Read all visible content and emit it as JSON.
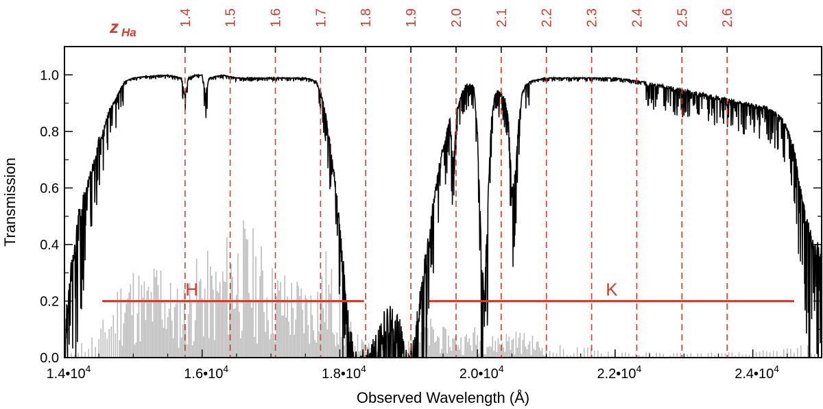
{
  "chart_data": {
    "type": "line",
    "xlabel": "Observed Wavelength  (Å)",
    "ylabel": "Transmission",
    "xlim": [
      14000,
      25000
    ],
    "ylim": [
      0.0,
      1.1
    ],
    "x_ticks": [
      14000,
      16000,
      18000,
      20000,
      22000,
      24000
    ],
    "x_tick_labels": [
      "1.4•10",
      "1.6•10",
      "1.8•10",
      "2.0•10",
      "2.2•10",
      "2.4•10"
    ],
    "x_tick_exponent": "4",
    "y_ticks": [
      0.0,
      0.2,
      0.4,
      0.6,
      0.8,
      1.0
    ],
    "y_tick_labels": [
      "0.0",
      "0.2",
      "0.4",
      "0.6",
      "0.8",
      "1.0"
    ],
    "top_axis": {
      "title_main": "z",
      "title_sub": "Ha",
      "redshifts": [
        "1.4",
        "1.5",
        "1.6",
        "1.7",
        "1.8",
        "1.9",
        "2.0",
        "2.1",
        "2.2",
        "2.3",
        "2.4",
        "2.5",
        "2.6"
      ],
      "halpha_rest_wavelength": 6563
    },
    "bands": [
      {
        "name": "H",
        "x_start": 14550,
        "x_end": 18350,
        "y": 0.2
      },
      {
        "name": "K",
        "x_start": 19300,
        "x_end": 24600,
        "y": 0.2
      }
    ],
    "series": [
      {
        "color": "#000000",
        "points": [
          [
            14000,
            0.1
          ],
          [
            14050,
            0.25
          ],
          [
            14100,
            0.35
          ],
          [
            14150,
            0.42
          ],
          [
            14200,
            0.52
          ],
          [
            14250,
            0.56
          ],
          [
            14300,
            0.6
          ],
          [
            14350,
            0.64
          ],
          [
            14400,
            0.68
          ],
          [
            14450,
            0.72
          ],
          [
            14500,
            0.78
          ],
          [
            14550,
            0.8
          ],
          [
            14600,
            0.84
          ],
          [
            14650,
            0.88
          ],
          [
            14700,
            0.9
          ],
          [
            14750,
            0.92
          ],
          [
            14800,
            0.95
          ],
          [
            14850,
            0.97
          ],
          [
            14900,
            0.98
          ],
          [
            15000,
            0.99
          ],
          [
            15200,
            0.995
          ],
          [
            15500,
            1.0
          ],
          [
            15700,
            0.99
          ],
          [
            15750,
            0.93
          ],
          [
            15800,
            0.99
          ],
          [
            15900,
            1.0
          ],
          [
            16000,
            1.0
          ],
          [
            16050,
            0.94
          ],
          [
            16100,
            0.99
          ],
          [
            16300,
            1.0
          ],
          [
            16500,
            0.99
          ],
          [
            16700,
            0.99
          ],
          [
            17000,
            0.99
          ],
          [
            17300,
            0.99
          ],
          [
            17500,
            0.99
          ],
          [
            17650,
            0.98
          ],
          [
            17700,
            0.96
          ],
          [
            17750,
            0.92
          ],
          [
            17800,
            0.86
          ],
          [
            17850,
            0.78
          ],
          [
            17900,
            0.7
          ],
          [
            17950,
            0.6
          ],
          [
            18000,
            0.48
          ],
          [
            18050,
            0.35
          ],
          [
            18100,
            0.22
          ],
          [
            18150,
            0.12
          ],
          [
            18200,
            0.06
          ],
          [
            18300,
            0.03
          ],
          [
            18400,
            0.04
          ],
          [
            18500,
            0.1
          ],
          [
            18600,
            0.15
          ],
          [
            18700,
            0.2
          ],
          [
            18800,
            0.18
          ],
          [
            18900,
            0.12
          ],
          [
            18950,
            0.05
          ],
          [
            19000,
            0.02
          ],
          [
            19050,
            0.08
          ],
          [
            19100,
            0.15
          ],
          [
            19150,
            0.22
          ],
          [
            19200,
            0.3
          ],
          [
            19250,
            0.38
          ],
          [
            19300,
            0.45
          ],
          [
            19350,
            0.55
          ],
          [
            19400,
            0.62
          ],
          [
            19450,
            0.7
          ],
          [
            19500,
            0.75
          ],
          [
            19550,
            0.8
          ],
          [
            19600,
            0.85
          ],
          [
            19650,
            0.7
          ],
          [
            19700,
            0.88
          ],
          [
            19750,
            0.92
          ],
          [
            19800,
            0.96
          ],
          [
            19850,
            0.97
          ],
          [
            19900,
            0.97
          ],
          [
            19950,
            0.96
          ],
          [
            20000,
            0.8
          ],
          [
            20050,
            0.45
          ],
          [
            20100,
            0.22
          ],
          [
            20150,
            0.55
          ],
          [
            20200,
            0.85
          ],
          [
            20250,
            0.93
          ],
          [
            20300,
            0.95
          ],
          [
            20350,
            0.94
          ],
          [
            20400,
            0.92
          ],
          [
            20450,
            0.85
          ],
          [
            20500,
            0.6
          ],
          [
            20550,
            0.66
          ],
          [
            20600,
            0.85
          ],
          [
            20650,
            0.94
          ],
          [
            20700,
            0.97
          ],
          [
            20800,
            0.98
          ],
          [
            21000,
            0.99
          ],
          [
            21200,
            0.99
          ],
          [
            21500,
            0.99
          ],
          [
            21800,
            0.99
          ],
          [
            22000,
            0.99
          ],
          [
            22300,
            0.98
          ],
          [
            22600,
            0.97
          ],
          [
            22800,
            0.96
          ],
          [
            23000,
            0.95
          ],
          [
            23200,
            0.94
          ],
          [
            23400,
            0.93
          ],
          [
            23600,
            0.92
          ],
          [
            23800,
            0.91
          ],
          [
            24000,
            0.9
          ],
          [
            24200,
            0.89
          ],
          [
            24400,
            0.86
          ],
          [
            24500,
            0.82
          ],
          [
            24600,
            0.75
          ],
          [
            24700,
            0.6
          ],
          [
            24800,
            0.5
          ],
          [
            24900,
            0.4
          ],
          [
            25000,
            0.42
          ]
        ]
      },
      {
        "color": "#bbbbbb",
        "points": [
          [
            14000,
            0.03
          ],
          [
            14500,
            0.1
          ],
          [
            14800,
            0.3
          ],
          [
            15000,
            0.35
          ],
          [
            15200,
            0.3
          ],
          [
            15400,
            0.4
          ],
          [
            15600,
            0.25
          ],
          [
            15800,
            0.3
          ],
          [
            16000,
            0.4
          ],
          [
            16200,
            0.35
          ],
          [
            16400,
            0.48
          ],
          [
            16600,
            0.5
          ],
          [
            16800,
            0.45
          ],
          [
            17000,
            0.35
          ],
          [
            17200,
            0.32
          ],
          [
            17400,
            0.3
          ],
          [
            17600,
            0.28
          ],
          [
            17800,
            0.4
          ],
          [
            18000,
            0.25
          ],
          [
            18200,
            0.1
          ],
          [
            18400,
            0.05
          ],
          [
            18600,
            0.08
          ],
          [
            18800,
            0.07
          ],
          [
            19000,
            0.06
          ],
          [
            19200,
            0.18
          ],
          [
            19400,
            0.12
          ],
          [
            19600,
            0.1
          ],
          [
            19800,
            0.09
          ],
          [
            20000,
            0.12
          ],
          [
            20200,
            0.08
          ],
          [
            20400,
            0.1
          ],
          [
            20600,
            0.1
          ],
          [
            20800,
            0.08
          ],
          [
            21000,
            0.05
          ],
          [
            21500,
            0.04
          ],
          [
            22000,
            0.03
          ],
          [
            22500,
            0.02
          ],
          [
            23000,
            0.02
          ],
          [
            23500,
            0.02
          ],
          [
            24000,
            0.02
          ],
          [
            24500,
            0.04
          ],
          [
            25000,
            0.05
          ]
        ]
      }
    ]
  }
}
